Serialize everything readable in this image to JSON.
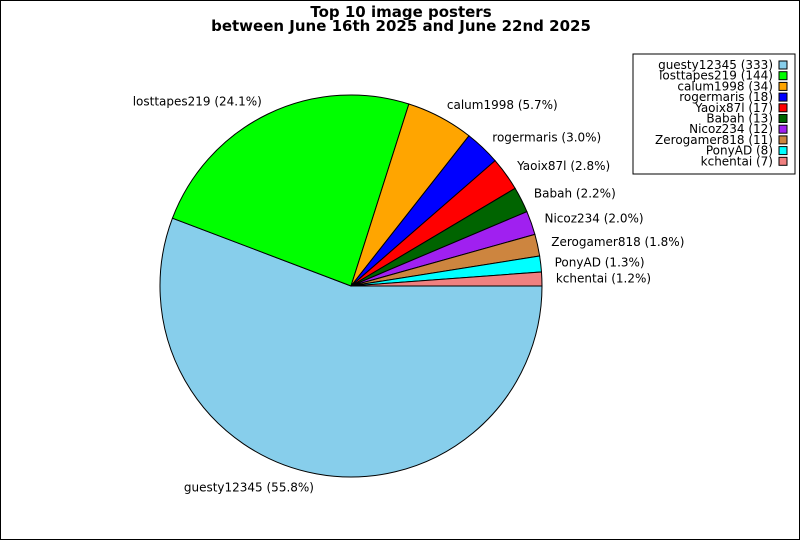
{
  "chart_data": {
    "type": "pie",
    "title": "Top 10 image posters",
    "subtitle": "between June 16th 2025 and June 22nd 2025",
    "slices": [
      {
        "name": "guesty12345",
        "value": 333,
        "percent_label": "guesty12345 (55.8%)",
        "legend_label": "guesty12345 (333)",
        "color": "#87ceeb"
      },
      {
        "name": "losttapes219",
        "value": 144,
        "percent_label": "losttapes219 (24.1%)",
        "legend_label": "losttapes219 (144)",
        "color": "#00ff00"
      },
      {
        "name": "calum1998",
        "value": 34,
        "percent_label": "calum1998 (5.7%)",
        "legend_label": "calum1998 (34)",
        "color": "#ffa500"
      },
      {
        "name": "rogermaris",
        "value": 18,
        "percent_label": "rogermaris (3.0%)",
        "legend_label": "rogermaris (18)",
        "color": "#0000ff"
      },
      {
        "name": "Yaoix87l",
        "value": 17,
        "percent_label": "Yaoix87l (2.8%)",
        "legend_label": "Yaoix87l (17)",
        "color": "#ff0000"
      },
      {
        "name": "Babah",
        "value": 13,
        "percent_label": "Babah (2.2%)",
        "legend_label": "Babah (13)",
        "color": "#006400"
      },
      {
        "name": "Nicoz234",
        "value": 12,
        "percent_label": "Nicoz234 (2.0%)",
        "legend_label": "Nicoz234 (12)",
        "color": "#a020f0"
      },
      {
        "name": "Zerogamer818",
        "value": 11,
        "percent_label": "Zerogamer818 (1.8%)",
        "legend_label": "Zerogamer818 (11)",
        "color": "#cd853f"
      },
      {
        "name": "PonyAD",
        "value": 8,
        "percent_label": "PonyAD (1.3%)",
        "legend_label": "PonyAD (8)",
        "color": "#00ffff"
      },
      {
        "name": "kchentai",
        "value": 7,
        "percent_label": "kchentai (1.2%)",
        "legend_label": "kchentai (7)",
        "color": "#f08080"
      }
    ],
    "start_angle_deg": 0,
    "direction": "clockwise",
    "legend_position": "top-right"
  }
}
